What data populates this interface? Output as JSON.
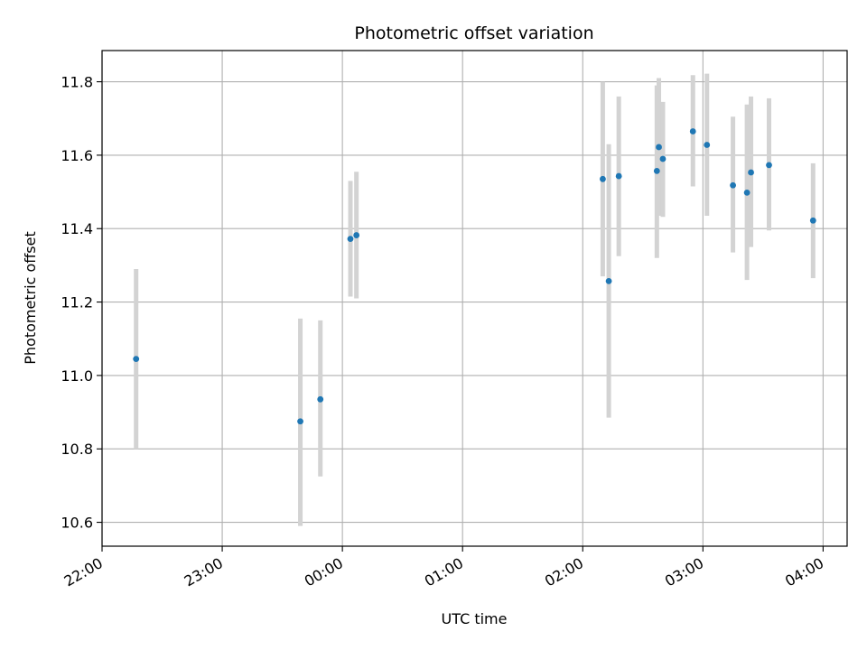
{
  "chart_data": {
    "type": "scatter",
    "title": "Photometric offset variation",
    "xlabel": "UTC time",
    "ylabel": "Photometric offset",
    "x_is_time": true,
    "x_ticks": [
      "22:00",
      "23:00",
      "00:00",
      "01:00",
      "02:00",
      "03:00",
      "04:00"
    ],
    "xlim": [
      "22:00",
      "04:12"
    ],
    "y_ticks": [
      "10.6",
      "10.8",
      "11.0",
      "11.2",
      "11.4",
      "11.6",
      "11.8"
    ],
    "ylim": [
      10.535,
      11.885
    ],
    "grid": true,
    "legend": false,
    "colors": {
      "points": "#1f77b4",
      "errorbars": "#d3d3d3",
      "grid": "#b0b0b0"
    },
    "points": [
      {
        "x": "22:17",
        "y": 11.045,
        "err_low": 10.8,
        "err_high": 11.29
      },
      {
        "x": "23:39",
        "y": 10.875,
        "err_low": 10.59,
        "err_high": 11.155
      },
      {
        "x": "23:49",
        "y": 10.935,
        "err_low": 10.725,
        "err_high": 11.15
      },
      {
        "x": "00:04",
        "y": 11.372,
        "err_low": 11.215,
        "err_high": 11.53
      },
      {
        "x": "00:07",
        "y": 11.382,
        "err_low": 11.21,
        "err_high": 11.555
      },
      {
        "x": "02:10",
        "y": 11.535,
        "err_low": 11.27,
        "err_high": 11.8
      },
      {
        "x": "02:13",
        "y": 11.257,
        "err_low": 10.885,
        "err_high": 11.63
      },
      {
        "x": "02:18",
        "y": 11.543,
        "err_low": 11.325,
        "err_high": 11.76
      },
      {
        "x": "02:37",
        "y": 11.557,
        "err_low": 11.32,
        "err_high": 11.79
      },
      {
        "x": "02:38",
        "y": 11.622,
        "err_low": 11.435,
        "err_high": 11.81
      },
      {
        "x": "02:40",
        "y": 11.59,
        "err_low": 11.432,
        "err_high": 11.745
      },
      {
        "x": "02:55",
        "y": 11.665,
        "err_low": 11.515,
        "err_high": 11.818
      },
      {
        "x": "03:02",
        "y": 11.628,
        "err_low": 11.435,
        "err_high": 11.822
      },
      {
        "x": "03:15",
        "y": 11.518,
        "err_low": 11.335,
        "err_high": 11.705
      },
      {
        "x": "03:22",
        "y": 11.498,
        "err_low": 11.26,
        "err_high": 11.738
      },
      {
        "x": "03:24",
        "y": 11.553,
        "err_low": 11.35,
        "err_high": 11.76
      },
      {
        "x": "03:33",
        "y": 11.573,
        "err_low": 11.395,
        "err_high": 11.755
      },
      {
        "x": "03:55",
        "y": 11.422,
        "err_low": 11.265,
        "err_high": 11.578
      }
    ]
  }
}
